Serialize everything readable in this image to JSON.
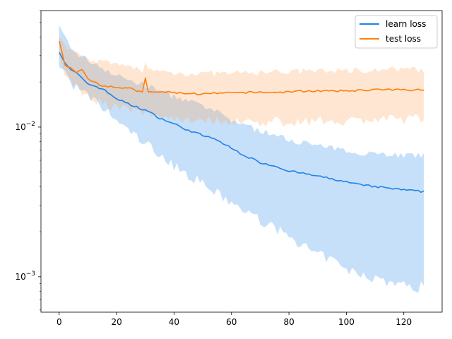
{
  "chart_data": {
    "type": "line",
    "title": "",
    "xlabel": "",
    "ylabel": "",
    "xlim": [
      -6.35,
      133.35
    ],
    "ylim": [
      0.00058,
      0.06
    ],
    "yscale": "log",
    "grid": false,
    "legend_position": "top-right",
    "x_ticks": [
      0,
      20,
      40,
      60,
      80,
      100,
      120
    ],
    "y_ticks": [
      {
        "value": 0.01,
        "base": "10",
        "exp": "−2"
      },
      {
        "value": 0.001,
        "base": "10",
        "exp": "−3"
      }
    ],
    "series": [
      {
        "name": "learn loss",
        "color": "#1f83e6",
        "band_color": "#1f83e6",
        "x_start": 0,
        "x_end": 127,
        "mean_knots": [
          [
            0,
            0.032
          ],
          [
            2,
            0.027
          ],
          [
            4,
            0.024
          ],
          [
            6,
            0.023
          ],
          [
            8,
            0.021
          ],
          [
            10,
            0.0195
          ],
          [
            15,
            0.018
          ],
          [
            20,
            0.0155
          ],
          [
            25,
            0.014
          ],
          [
            30,
            0.013
          ],
          [
            35,
            0.0115
          ],
          [
            40,
            0.0105
          ],
          [
            45,
            0.0095
          ],
          [
            50,
            0.0088
          ],
          [
            55,
            0.0082
          ],
          [
            60,
            0.0072
          ],
          [
            65,
            0.0064
          ],
          [
            70,
            0.0058
          ],
          [
            75,
            0.0055
          ],
          [
            80,
            0.0051
          ],
          [
            85,
            0.0049
          ],
          [
            90,
            0.0047
          ],
          [
            95,
            0.0045
          ],
          [
            100,
            0.0043
          ],
          [
            105,
            0.0041
          ],
          [
            110,
            0.004
          ],
          [
            115,
            0.0039
          ],
          [
            120,
            0.0038
          ],
          [
            127,
            0.0037
          ]
        ],
        "upper_knots": [
          [
            0,
            0.046
          ],
          [
            5,
            0.032
          ],
          [
            10,
            0.028
          ],
          [
            15,
            0.025
          ],
          [
            20,
            0.022
          ],
          [
            25,
            0.0205
          ],
          [
            30,
            0.019
          ],
          [
            35,
            0.0175
          ],
          [
            40,
            0.016
          ],
          [
            45,
            0.0148
          ],
          [
            50,
            0.0138
          ],
          [
            55,
            0.0125
          ],
          [
            60,
            0.0112
          ],
          [
            65,
            0.0102
          ],
          [
            70,
            0.0095
          ],
          [
            75,
            0.0088
          ],
          [
            80,
            0.0083
          ],
          [
            85,
            0.0079
          ],
          [
            90,
            0.0075
          ],
          [
            95,
            0.0072
          ],
          [
            100,
            0.0069
          ],
          [
            110,
            0.0067
          ],
          [
            120,
            0.0065
          ],
          [
            127,
            0.0064
          ]
        ],
        "lower_knots": [
          [
            0,
            0.026
          ],
          [
            5,
            0.019
          ],
          [
            10,
            0.016
          ],
          [
            15,
            0.0135
          ],
          [
            20,
            0.011
          ],
          [
            25,
            0.0092
          ],
          [
            30,
            0.0078
          ],
          [
            35,
            0.0066
          ],
          [
            40,
            0.0055
          ],
          [
            45,
            0.0048
          ],
          [
            50,
            0.0042
          ],
          [
            55,
            0.0036
          ],
          [
            60,
            0.0031
          ],
          [
            65,
            0.0027
          ],
          [
            70,
            0.0024
          ],
          [
            75,
            0.0021
          ],
          [
            80,
            0.0019
          ],
          [
            85,
            0.0016
          ],
          [
            90,
            0.0014
          ],
          [
            95,
            0.0013
          ],
          [
            100,
            0.0011
          ],
          [
            105,
            0.00105
          ],
          [
            110,
            0.00098
          ],
          [
            115,
            0.00092
          ],
          [
            120,
            0.00088
          ],
          [
            125,
            0.00084
          ],
          [
            127,
            0.0009
          ]
        ]
      },
      {
        "name": "test loss",
        "color": "#ff7f0e",
        "band_color": "#fda45c",
        "x_start": 0,
        "x_end": 127,
        "mean_knots": [
          [
            0,
            0.038
          ],
          [
            2,
            0.026
          ],
          [
            4,
            0.025
          ],
          [
            6,
            0.023
          ],
          [
            8,
            0.024
          ],
          [
            10,
            0.021
          ],
          [
            15,
            0.019
          ],
          [
            20,
            0.0185
          ],
          [
            25,
            0.018
          ],
          [
            29,
            0.017
          ],
          [
            30,
            0.0215
          ],
          [
            31,
            0.017
          ],
          [
            35,
            0.0172
          ],
          [
            40,
            0.017
          ],
          [
            45,
            0.0168
          ],
          [
            50,
            0.0166
          ],
          [
            55,
            0.0168
          ],
          [
            60,
            0.0169
          ],
          [
            65,
            0.017
          ],
          [
            70,
            0.0171
          ],
          [
            75,
            0.017
          ],
          [
            80,
            0.0172
          ],
          [
            85,
            0.0174
          ],
          [
            90,
            0.0175
          ],
          [
            95,
            0.0173
          ],
          [
            100,
            0.0175
          ],
          [
            105,
            0.0176
          ],
          [
            110,
            0.0178
          ],
          [
            115,
            0.0177
          ],
          [
            120,
            0.0178
          ],
          [
            127,
            0.0177
          ]
        ],
        "upper_knots": [
          [
            0,
            0.042
          ],
          [
            3,
            0.034
          ],
          [
            5,
            0.031
          ],
          [
            10,
            0.029
          ],
          [
            15,
            0.027
          ],
          [
            20,
            0.026
          ],
          [
            25,
            0.025
          ],
          [
            29,
            0.024
          ],
          [
            30,
            0.0285
          ],
          [
            31,
            0.024
          ],
          [
            35,
            0.0235
          ],
          [
            40,
            0.023
          ],
          [
            50,
            0.0228
          ],
          [
            60,
            0.0228
          ],
          [
            70,
            0.0232
          ],
          [
            80,
            0.0235
          ],
          [
            90,
            0.0237
          ],
          [
            100,
            0.024
          ],
          [
            110,
            0.0242
          ],
          [
            120,
            0.0243
          ],
          [
            127,
            0.0242
          ]
        ],
        "lower_knots": [
          [
            0,
            0.03
          ],
          [
            3,
            0.021
          ],
          [
            5,
            0.019
          ],
          [
            10,
            0.0165
          ],
          [
            15,
            0.0145
          ],
          [
            20,
            0.0135
          ],
          [
            25,
            0.0128
          ],
          [
            30,
            0.0125
          ],
          [
            35,
            0.012
          ],
          [
            40,
            0.0115
          ],
          [
            50,
            0.0112
          ],
          [
            60,
            0.011
          ],
          [
            70,
            0.0108
          ],
          [
            80,
            0.0109
          ],
          [
            90,
            0.011
          ],
          [
            100,
            0.0111
          ],
          [
            110,
            0.0112
          ],
          [
            120,
            0.0113
          ],
          [
            127,
            0.0115
          ]
        ]
      }
    ]
  }
}
